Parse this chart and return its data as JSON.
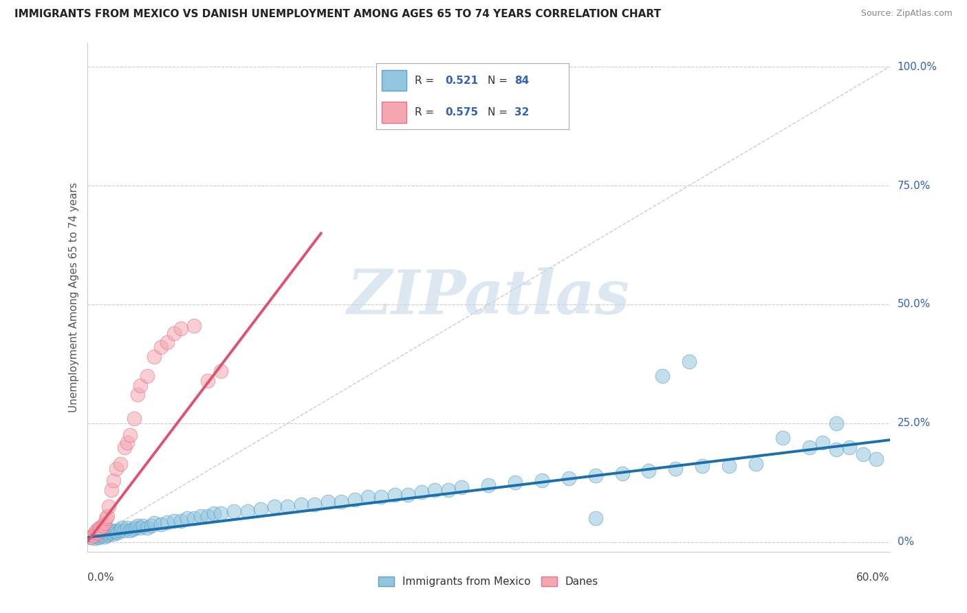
{
  "title": "IMMIGRANTS FROM MEXICO VS DANISH UNEMPLOYMENT AMONG AGES 65 TO 74 YEARS CORRELATION CHART",
  "source": "Source: ZipAtlas.com",
  "ylabel": "Unemployment Among Ages 65 to 74 years",
  "ytick_vals": [
    0.0,
    0.25,
    0.5,
    0.75,
    1.0
  ],
  "ytick_labels": [
    "0%",
    "25.0%",
    "50.0%",
    "75.0%",
    "100.0%"
  ],
  "xlim": [
    0.0,
    0.6
  ],
  "ylim": [
    -0.02,
    1.05
  ],
  "legend_R1_val": "0.521",
  "legend_N1_val": "84",
  "legend_R2_val": "0.575",
  "legend_N2_val": "32",
  "blue_color": "#92c5de",
  "blue_edge": "#5b9ec9",
  "blue_trend": "#1a6faf",
  "pink_color": "#f4a7b0",
  "pink_edge": "#e07090",
  "pink_trend": "#e05070",
  "ref_color": "#cccccc",
  "watermark": "ZIPatlas",
  "watermark_color": "#c5d8ea",
  "series1_label": "Immigrants from Mexico",
  "series2_label": "Danes",
  "legend_text_color": "#3060c0",
  "legend_label_color": "#333333",
  "blue_x": [
    0.003,
    0.005,
    0.006,
    0.008,
    0.008,
    0.009,
    0.01,
    0.01,
    0.011,
    0.012,
    0.013,
    0.014,
    0.015,
    0.015,
    0.016,
    0.018,
    0.019,
    0.02,
    0.021,
    0.022,
    0.023,
    0.025,
    0.026,
    0.028,
    0.03,
    0.032,
    0.034,
    0.036,
    0.038,
    0.04,
    0.042,
    0.045,
    0.048,
    0.05,
    0.055,
    0.06,
    0.065,
    0.07,
    0.075,
    0.08,
    0.085,
    0.09,
    0.095,
    0.1,
    0.11,
    0.12,
    0.13,
    0.14,
    0.15,
    0.16,
    0.17,
    0.18,
    0.19,
    0.2,
    0.21,
    0.22,
    0.23,
    0.24,
    0.25,
    0.26,
    0.27,
    0.28,
    0.3,
    0.32,
    0.34,
    0.36,
    0.38,
    0.4,
    0.42,
    0.44,
    0.46,
    0.48,
    0.5,
    0.52,
    0.54,
    0.55,
    0.56,
    0.57,
    0.58,
    0.59,
    0.43,
    0.45,
    0.38,
    0.56
  ],
  "blue_y": [
    0.01,
    0.015,
    0.008,
    0.012,
    0.018,
    0.01,
    0.015,
    0.02,
    0.015,
    0.018,
    0.012,
    0.02,
    0.015,
    0.022,
    0.018,
    0.02,
    0.025,
    0.018,
    0.022,
    0.025,
    0.02,
    0.025,
    0.03,
    0.025,
    0.03,
    0.025,
    0.028,
    0.03,
    0.035,
    0.03,
    0.035,
    0.03,
    0.035,
    0.04,
    0.038,
    0.042,
    0.045,
    0.045,
    0.05,
    0.05,
    0.055,
    0.055,
    0.06,
    0.06,
    0.065,
    0.065,
    0.07,
    0.075,
    0.075,
    0.08,
    0.08,
    0.085,
    0.085,
    0.09,
    0.095,
    0.095,
    0.1,
    0.1,
    0.105,
    0.11,
    0.11,
    0.115,
    0.12,
    0.125,
    0.13,
    0.135,
    0.14,
    0.145,
    0.15,
    0.155,
    0.16,
    0.16,
    0.165,
    0.22,
    0.2,
    0.21,
    0.195,
    0.2,
    0.185,
    0.175,
    0.35,
    0.38,
    0.05,
    0.25
  ],
  "pink_x": [
    0.003,
    0.005,
    0.006,
    0.007,
    0.008,
    0.009,
    0.01,
    0.01,
    0.012,
    0.013,
    0.014,
    0.015,
    0.016,
    0.018,
    0.02,
    0.022,
    0.025,
    0.028,
    0.03,
    0.032,
    0.035,
    0.038,
    0.04,
    0.045,
    0.05,
    0.055,
    0.06,
    0.065,
    0.07,
    0.08,
    0.09,
    0.1
  ],
  "pink_y": [
    0.01,
    0.015,
    0.02,
    0.025,
    0.02,
    0.03,
    0.025,
    0.03,
    0.035,
    0.04,
    0.05,
    0.055,
    0.075,
    0.11,
    0.13,
    0.155,
    0.165,
    0.2,
    0.21,
    0.225,
    0.26,
    0.31,
    0.33,
    0.35,
    0.39,
    0.41,
    0.42,
    0.44,
    0.45,
    0.455,
    0.34,
    0.36
  ],
  "blue_trend_x": [
    0.0,
    0.6
  ],
  "blue_trend_y": [
    0.01,
    0.215
  ],
  "pink_trend_x": [
    0.0,
    0.175
  ],
  "pink_trend_y": [
    0.0,
    0.65
  ],
  "ref_line_x": [
    0.0,
    0.6
  ],
  "ref_line_y": [
    0.0,
    1.0
  ]
}
